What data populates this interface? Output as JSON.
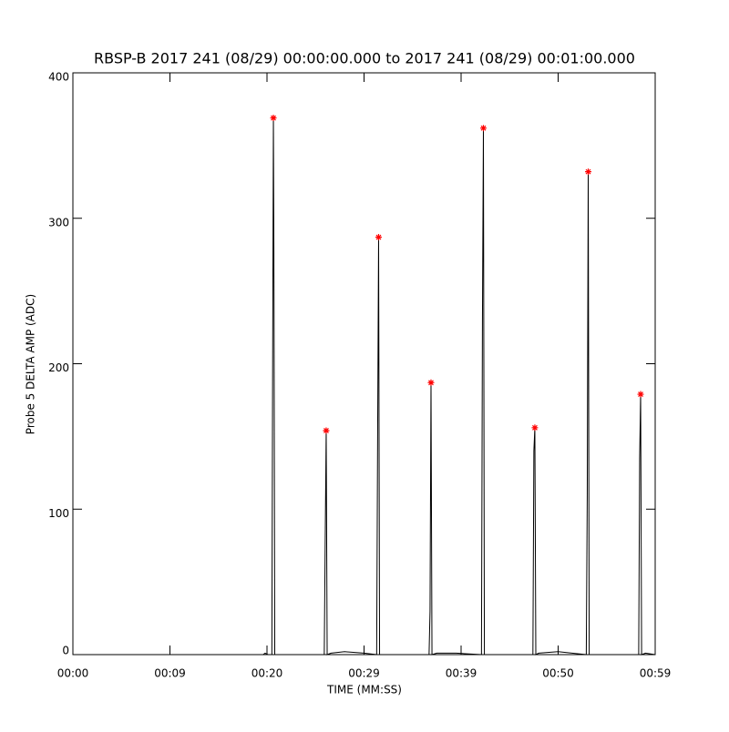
{
  "chart_data": {
    "type": "line",
    "title": "RBSP-B 2017 241 (08/29) 00:00:00.000 to 2017 241 (08/29) 00:01:00.000",
    "x_label": "TIME (MM:SS)",
    "y_label": "Probe 5 DELTA AMP (ADC)",
    "xlim": [
      0,
      60
    ],
    "ylim": [
      0,
      400
    ],
    "xticks": [
      {
        "value": 0,
        "label": "00:00"
      },
      {
        "value": 10,
        "label": "00:09"
      },
      {
        "value": 20,
        "label": "00:20"
      },
      {
        "value": 30,
        "label": "00:29"
      },
      {
        "value": 40,
        "label": "00:39"
      },
      {
        "value": 50,
        "label": "00:50"
      },
      {
        "value": 60,
        "label": "00:59"
      }
    ],
    "yticks": [
      0,
      100,
      200,
      300,
      400
    ],
    "series": [
      {
        "color": "#000000",
        "marker": "none",
        "x": [
          0,
          19.6,
          19.8,
          20.1,
          20.5,
          20.6,
          20.66,
          20.72,
          20.8,
          24.6,
          25.9,
          26.0,
          26.1,
          26.2,
          26.6,
          28,
          30,
          31.3,
          31.4,
          31.5,
          31.6,
          34,
          36.7,
          36.8,
          36.9,
          37.0,
          37.5,
          39.5,
          42.1,
          42.2,
          42.3,
          42.4,
          47.4,
          47.5,
          47.6,
          47.7,
          48,
          50,
          52.9,
          53.0,
          53.1,
          53.2,
          58.3,
          58.4,
          58.5,
          58.6,
          59,
          60
        ],
        "values": [
          0,
          0,
          1,
          0,
          0,
          240,
          369,
          258,
          0,
          0,
          0,
          80,
          154,
          0,
          1,
          2,
          1,
          0,
          150,
          287,
          0,
          0,
          0,
          30,
          187,
          0,
          1,
          1,
          0,
          230,
          362,
          0,
          0,
          140,
          156,
          0,
          1,
          2,
          0,
          110,
          332,
          0,
          0,
          135,
          179,
          0,
          1,
          0
        ]
      },
      {
        "color": "#ff0000",
        "marker": "*",
        "x": [
          20.66,
          26.1,
          31.5,
          36.9,
          42.3,
          47.6,
          53.1,
          58.5
        ],
        "values": [
          369,
          154,
          287,
          187,
          362,
          156,
          332,
          179
        ]
      }
    ]
  }
}
